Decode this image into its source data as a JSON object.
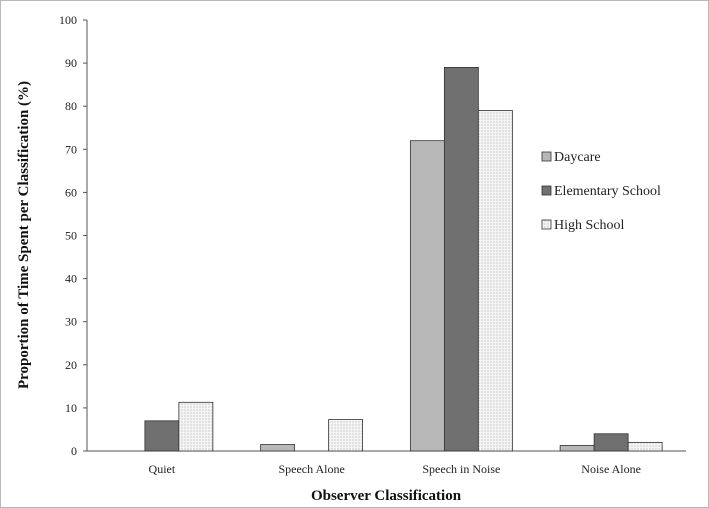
{
  "chart_data": {
    "type": "bar",
    "title": "",
    "xlabel": "Observer Classification",
    "ylabel": "Proportion of Time Spent per Classification  (%)",
    "ylim": [
      0,
      100
    ],
    "yticks": [
      0,
      10,
      20,
      30,
      40,
      50,
      60,
      70,
      80,
      90,
      100
    ],
    "categories": [
      "Quiet",
      "Speech Alone",
      "Speech in Noise",
      "Noise Alone"
    ],
    "series": [
      {
        "name": "Daycare",
        "values": [
          0,
          1.5,
          72,
          1.3
        ],
        "color": "#b8b8b8",
        "pattern": "solid"
      },
      {
        "name": "Elementary School",
        "values": [
          7,
          0,
          89,
          4
        ],
        "color": "#707070",
        "pattern": "solid"
      },
      {
        "name": "High School",
        "values": [
          11.3,
          7.3,
          79,
          2
        ],
        "color": "#f2f2f2",
        "pattern": "dots"
      }
    ],
    "grid": false,
    "legend_position": "right"
  }
}
